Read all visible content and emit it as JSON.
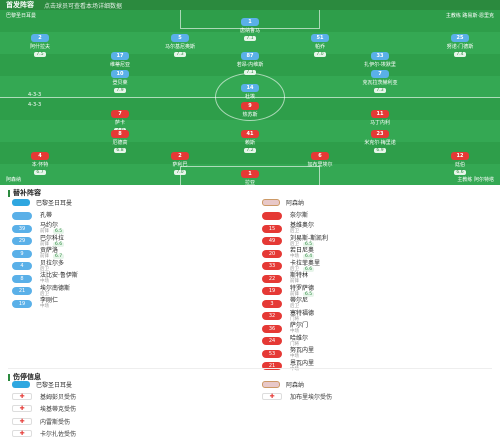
{
  "header": {
    "title": "首发阵容",
    "subtitle": "点击球员可查看本场详细数据"
  },
  "pitch": {
    "home_label": "巴黎圣日耳曼",
    "away_label": "阿森纳",
    "home_formation": "4-3-3",
    "away_formation": "4-3-3",
    "home_coach": "主教练 路易斯·恩里克",
    "away_coach": "主教练 阿尔特塔",
    "home_players": [
      {
        "num": "1",
        "name": "唐纳鲁马",
        "rating": "7.1"
      },
      {
        "num": "2",
        "name": "阿什拉夫",
        "rating": "7.5"
      },
      {
        "num": "5",
        "name": "马尔基尼奥斯",
        "rating": "7.3"
      },
      {
        "num": "51",
        "name": "帕乔",
        "rating": "7.0"
      },
      {
        "num": "25",
        "name": "努诺·门德斯",
        "rating": "7.4"
      },
      {
        "num": "17",
        "name": "维蒂尼亚",
        "rating": "7.2"
      },
      {
        "num": "87",
        "name": "若昂·内维斯",
        "rating": "7.1"
      },
      {
        "num": "33",
        "name": "扎伊尔-埃默里",
        "rating": "6.8"
      },
      {
        "num": "10",
        "name": "登贝莱",
        "rating": "7.9"
      },
      {
        "num": "14",
        "name": "杜埃",
        "rating": "7.0"
      },
      {
        "num": "7",
        "name": "克瓦拉茨赫利亚",
        "rating": "7.3"
      }
    ],
    "away_players": [
      {
        "num": "9",
        "name": "热苏斯",
        "rating": ""
      },
      {
        "num": "7",
        "name": "萨卡",
        "rating": "7.0"
      },
      {
        "num": "11",
        "name": "马丁内利",
        "rating": ""
      },
      {
        "num": "8",
        "name": "厄德高",
        "rating": "6.8"
      },
      {
        "num": "41",
        "name": "赖斯",
        "rating": "7.2"
      },
      {
        "num": "23",
        "name": "米克尔·梅里诺",
        "rating": "6.9"
      },
      {
        "num": "4",
        "name": "本·怀特",
        "rating": "6.7"
      },
      {
        "num": "2",
        "name": "萨利巴",
        "rating": "7.0"
      },
      {
        "num": "6",
        "name": "加布里埃尔",
        "rating": ""
      },
      {
        "num": "12",
        "name": "廷伯",
        "rating": "6.6"
      },
      {
        "num": "1",
        "name": "拉亚",
        "rating": "7.1"
      }
    ]
  },
  "subs": {
    "title": "替补阵容",
    "home_team": "巴黎圣日耳曼",
    "away_team": "阿森纳",
    "home": [
      {
        "num": "",
        "name": "孔蒂",
        "pos": "",
        "rating": ""
      },
      {
        "num": "39",
        "name": "马约尔",
        "pos": "前锋",
        "rating": "6.5"
      },
      {
        "num": "29",
        "name": "巴尔科拉",
        "pos": "前锋",
        "rating": "6.6"
      },
      {
        "num": "9",
        "name": "贡萨洛",
        "pos": "前锋",
        "rating": "6.7"
      },
      {
        "num": "4",
        "name": "贝拉尔多",
        "pos": "后卫",
        "rating": ""
      },
      {
        "num": "8",
        "name": "法比安·鲁伊斯",
        "pos": "中场",
        "rating": ""
      },
      {
        "num": "21",
        "name": "埃尔南德斯",
        "pos": "后卫",
        "rating": ""
      },
      {
        "num": "19",
        "name": "李刚仁",
        "pos": "中场",
        "rating": ""
      }
    ],
    "away": [
      {
        "num": "",
        "name": "奈尔斯",
        "pos": "",
        "rating": ""
      },
      {
        "num": "15",
        "name": "基维奥尔",
        "pos": "后卫",
        "rating": ""
      },
      {
        "num": "49",
        "name": "刘易斯-斯凯利",
        "pos": "后卫",
        "rating": "6.5"
      },
      {
        "num": "20",
        "name": "若日尼奥",
        "pos": "中场",
        "rating": "6.4"
      },
      {
        "num": "33",
        "name": "卡拉菲奥里",
        "pos": "后卫",
        "rating": "6.6"
      },
      {
        "num": "22",
        "name": "斯特林",
        "pos": "前锋",
        "rating": ""
      },
      {
        "num": "19",
        "name": "特罗萨德",
        "pos": "前锋",
        "rating": "6.5"
      },
      {
        "num": "3",
        "name": "蒂尔尼",
        "pos": "后卫",
        "rating": ""
      },
      {
        "num": "32",
        "name": "塞特福德",
        "pos": "门将",
        "rating": ""
      },
      {
        "num": "36",
        "name": "萨尔门",
        "pos": "中场",
        "rating": ""
      },
      {
        "num": "24",
        "name": "哈维尔",
        "pos": "门将",
        "rating": ""
      },
      {
        "num": "53",
        "name": "努瓦内里",
        "pos": "中场",
        "rating": ""
      },
      {
        "num": "21",
        "name": "恩瓦内里",
        "pos": "中场",
        "rating": ""
      }
    ]
  },
  "injuries": {
    "title": "伤停信息",
    "home_team": "巴黎圣日耳曼",
    "away_team": "阿森纳",
    "home": [
      {
        "name": "基姆彭贝",
        "reason": "受伤"
      },
      {
        "name": "埃基蒂克",
        "reason": "受伤"
      },
      {
        "name": "内雷斯",
        "reason": "受伤"
      },
      {
        "name": "卡尔扎佐",
        "reason": "受伤"
      }
    ],
    "away": [
      {
        "name": "加布里埃尔",
        "reason": "受伤"
      }
    ]
  },
  "colors": {
    "accent": "#2b8a3e",
    "home": "#5ab0e8",
    "away": "#e53935"
  }
}
